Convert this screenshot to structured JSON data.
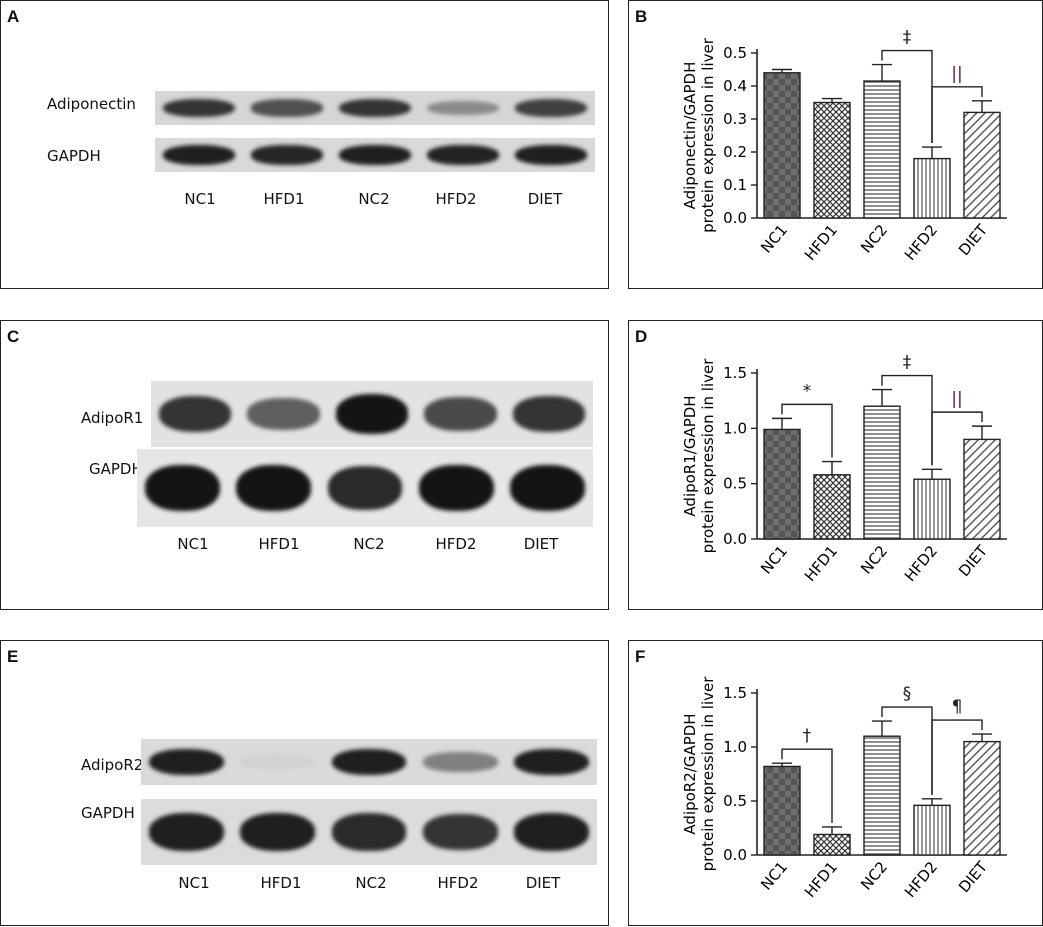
{
  "panels": {
    "A": {
      "letter": "A",
      "protein_label": "Adiponectin",
      "control_label": "GAPDH",
      "lanes": [
        "NC1",
        "HFD1",
        "NC2",
        "HFD2",
        "DIET"
      ],
      "protein_intensity": [
        0.85,
        0.72,
        0.85,
        0.45,
        0.8
      ],
      "control_intensity": [
        0.95,
        0.92,
        0.95,
        0.93,
        0.95
      ]
    },
    "C": {
      "letter": "C",
      "protein_label": "AdipoR1",
      "control_label": "GAPDH",
      "lanes": [
        "NC1",
        "HFD1",
        "NC2",
        "HFD2",
        "DIET"
      ],
      "protein_intensity": [
        0.85,
        0.65,
        1.0,
        0.75,
        0.85
      ],
      "control_intensity": [
        1.0,
        1.0,
        0.9,
        1.0,
        1.0
      ]
    },
    "E": {
      "letter": "E",
      "protein_label": "AdipoR2",
      "control_label": "GAPDH",
      "lanes": [
        "NC1",
        "HFD1",
        "NC2",
        "HFD2",
        "DIET"
      ],
      "protein_intensity": [
        0.95,
        0.12,
        0.95,
        0.5,
        0.95
      ],
      "control_intensity": [
        0.95,
        0.95,
        0.9,
        0.85,
        0.95
      ]
    }
  },
  "chart_data": [
    {
      "panel": "B",
      "type": "bar",
      "categories": [
        "NC1",
        "HFD1",
        "NC2",
        "HFD2",
        "DIET"
      ],
      "values": [
        0.44,
        0.35,
        0.415,
        0.18,
        0.32
      ],
      "errors": [
        0.01,
        0.012,
        0.05,
        0.035,
        0.035
      ],
      "ylabel_line1": "Adiponectin/GAPDH",
      "ylabel_line2": "protein expression in liver",
      "ylim": [
        0,
        0.5
      ],
      "yticks": [
        "0.0",
        "0.1",
        "0.2",
        "0.3",
        "0.4",
        "0.5"
      ],
      "significance": [
        {
          "from": 2,
          "to": 3,
          "symbol": "‡",
          "color": "#222"
        },
        {
          "from": 3,
          "to": 4,
          "symbol": "||",
          "color": "#5a1a4a"
        }
      ]
    },
    {
      "panel": "D",
      "type": "bar",
      "categories": [
        "NC1",
        "HFD1",
        "NC2",
        "HFD2",
        "DIET"
      ],
      "values": [
        0.99,
        0.58,
        1.2,
        0.54,
        0.9
      ],
      "errors": [
        0.1,
        0.12,
        0.15,
        0.09,
        0.12
      ],
      "ylabel_line1": "AdipoR1/GAPDH",
      "ylabel_line2": "protein expression in liver",
      "ylim": [
        0,
        1.5
      ],
      "yticks": [
        "0.0",
        "0.5",
        "1.0",
        "1.5"
      ],
      "significance": [
        {
          "from": 0,
          "to": 1,
          "symbol": "*",
          "color": "#222"
        },
        {
          "from": 2,
          "to": 3,
          "symbol": "‡",
          "color": "#222"
        },
        {
          "from": 3,
          "to": 4,
          "symbol": "||",
          "color": "#5a1a4a"
        }
      ]
    },
    {
      "panel": "F",
      "type": "bar",
      "categories": [
        "NC1",
        "HFD1",
        "NC2",
        "HFD2",
        "DIET"
      ],
      "values": [
        0.82,
        0.19,
        1.1,
        0.46,
        1.05
      ],
      "errors": [
        0.03,
        0.07,
        0.14,
        0.06,
        0.07
      ],
      "ylabel_line1": "AdipoR2/GAPDH",
      "ylabel_line2": "protein expression in liver",
      "ylim": [
        0,
        1.5
      ],
      "yticks": [
        "0.0",
        "0.5",
        "1.0",
        "1.5"
      ],
      "significance": [
        {
          "from": 0,
          "to": 1,
          "symbol": "†",
          "color": "#222"
        },
        {
          "from": 2,
          "to": 3,
          "symbol": "§",
          "color": "#222"
        },
        {
          "from": 3,
          "to": 4,
          "symbol": "¶",
          "color": "#222"
        }
      ]
    }
  ],
  "chart_letters": {
    "B": "B",
    "D": "D",
    "F": "F"
  }
}
